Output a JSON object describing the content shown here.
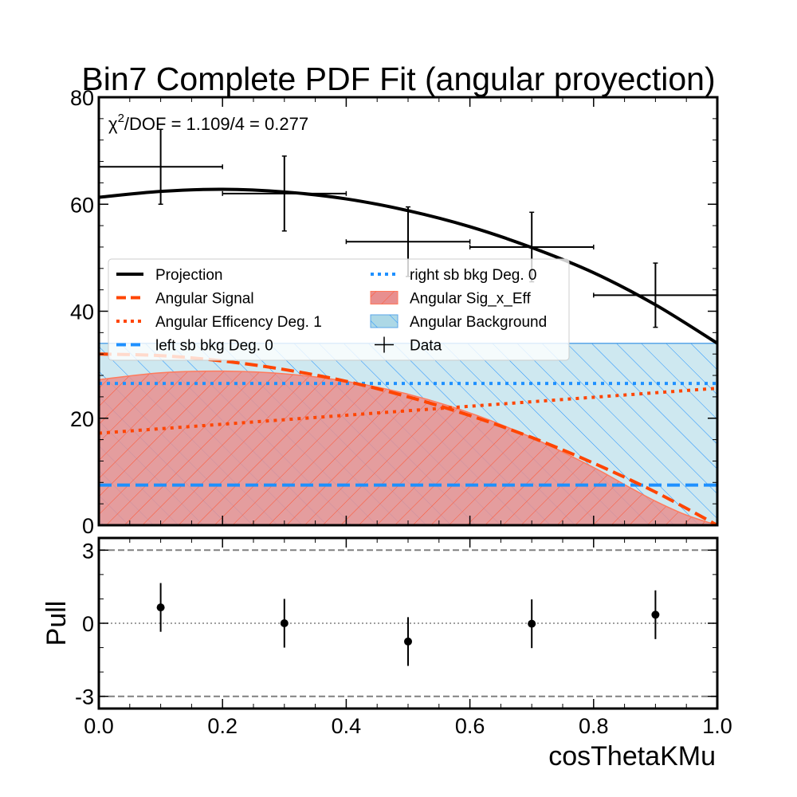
{
  "title": "Bin7 Complete PDF Fit (angular proyection)",
  "annotation": {
    "prefix": "χ",
    "sup": "2",
    "rest": "/DOF = 1.109/4 = 0.277"
  },
  "colors": {
    "projection": "#000000",
    "signal": "#ff4500",
    "background_line": "#1e90ff",
    "sig_eff_fill": "#e88f8f",
    "sig_eff_hatch": "#ff5533",
    "bkg_fill": "#add8e6",
    "bkg_hatch": "#1e90ff",
    "pull_ref": "#808080"
  },
  "chart_data": [
    {
      "type": "line",
      "panel": "main",
      "xlim": [
        0.0,
        1.0
      ],
      "ylim": [
        0,
        80
      ],
      "xlabel": "cosThetaKMu",
      "ylabel": "",
      "grid": false,
      "legend_placement": "center-left",
      "x_ticks": [
        "0.0",
        "0.2",
        "0.4",
        "0.6",
        "0.8",
        "1.0"
      ],
      "y_ticks": [
        "0",
        "20",
        "40",
        "60",
        "80"
      ],
      "series": [
        {
          "name": "Projection",
          "style": "solid",
          "x": [
            0.0,
            0.1,
            0.2,
            0.3,
            0.4,
            0.5,
            0.6,
            0.7,
            0.8,
            0.9,
            1.0
          ],
          "y": [
            61.3,
            62.4,
            62.8,
            62.3,
            61.0,
            58.8,
            55.8,
            51.9,
            47.2,
            41.2,
            34.0
          ]
        },
        {
          "name": "Angular Signal",
          "style": "dashed",
          "x": [
            0.0,
            0.1,
            0.2,
            0.3,
            0.4,
            0.5,
            0.6,
            0.7,
            0.8,
            0.9,
            1.0
          ],
          "y": [
            32.0,
            31.7,
            30.7,
            29.1,
            26.9,
            24.0,
            20.5,
            16.4,
            11.6,
            6.2,
            0.0
          ]
        },
        {
          "name": "Angular Efficency Deg. 1",
          "style": "dotted",
          "x": [
            0.0,
            1.0
          ],
          "y": [
            17.2,
            25.6
          ]
        },
        {
          "name": "left sb bkg Deg. 0",
          "style": "dashed",
          "x": [
            0.0,
            1.0
          ],
          "y": [
            7.5,
            7.5
          ]
        },
        {
          "name": "right sb bkg Deg. 0",
          "style": "dotted",
          "x": [
            0.0,
            1.0
          ],
          "y": [
            26.5,
            26.5
          ]
        },
        {
          "name": "Angular Sig_x_Eff",
          "style": "fill",
          "x": [
            0.0,
            0.1,
            0.2,
            0.3,
            0.4,
            0.5,
            0.6,
            0.7,
            0.8,
            0.85,
            0.9,
            0.95,
            1.0
          ],
          "y": [
            27.2,
            28.5,
            28.8,
            28.3,
            26.9,
            24.5,
            21.0,
            16.4,
            10.8,
            7.6,
            4.5,
            1.9,
            0.0
          ]
        },
        {
          "name": "Angular Background",
          "style": "fill",
          "x": [
            0.0,
            1.0
          ],
          "y": [
            34.0,
            34.0
          ]
        },
        {
          "name": "Data",
          "style": "errorbar",
          "x": [
            0.1,
            0.3,
            0.5,
            0.7,
            0.9
          ],
          "y": [
            67.0,
            62.0,
            53.0,
            52.0,
            43.0
          ],
          "xerr": [
            0.1,
            0.1,
            0.1,
            0.1,
            0.1
          ],
          "yerr": [
            7.0,
            7.0,
            6.5,
            6.5,
            6.0
          ]
        }
      ]
    },
    {
      "type": "scatter",
      "panel": "pull",
      "xlim": [
        0.0,
        1.0
      ],
      "ylim": [
        -3.5,
        3.5
      ],
      "xlabel": "cosThetaKMu",
      "ylabel": "Pull",
      "grid": false,
      "x_ticks": [
        "0.0",
        "0.2",
        "0.4",
        "0.6",
        "0.8",
        "1.0"
      ],
      "y_ticks": [
        "-3",
        "0",
        "3"
      ],
      "reference_lines": [
        -3,
        0,
        3
      ],
      "series": [
        {
          "name": "",
          "x": [
            0.1,
            0.3,
            0.5,
            0.7,
            0.9
          ],
          "y": [
            0.65,
            0.0,
            -0.75,
            -0.02,
            0.35
          ],
          "yerr": [
            1.0,
            1.0,
            1.0,
            1.0,
            1.0
          ]
        }
      ]
    }
  ]
}
